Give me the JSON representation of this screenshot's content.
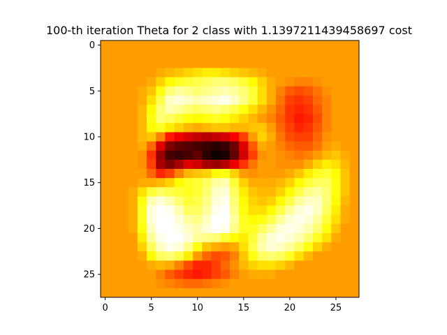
{
  "chart_data": {
    "type": "heatmap",
    "title": "100-th iteration Theta for 2 class with 1.1397211439458697 cost",
    "colormap": "hot",
    "shape": [
      28,
      28
    ],
    "xlim": [
      -0.5,
      27.5
    ],
    "ylim": [
      27.5,
      -0.5
    ],
    "xticks": [
      0,
      5,
      10,
      15,
      20,
      25
    ],
    "yticks": [
      0,
      5,
      10,
      15,
      20,
      25
    ],
    "baseline_value": 0.6,
    "color_scale_min": 0.0,
    "color_scale_max": 1.0,
    "grid": false,
    "values": [
      [
        0.6,
        0.6,
        0.6,
        0.6,
        0.6,
        0.6,
        0.6,
        0.6,
        0.6,
        0.6,
        0.6,
        0.6,
        0.6,
        0.6,
        0.6,
        0.6,
        0.6,
        0.6,
        0.6,
        0.6,
        0.6,
        0.6,
        0.6,
        0.6,
        0.6,
        0.6,
        0.6,
        0.6
      ],
      [
        0.6,
        0.6,
        0.6,
        0.6,
        0.6,
        0.6,
        0.6,
        0.6,
        0.6,
        0.6,
        0.6,
        0.6,
        0.6,
        0.6,
        0.6,
        0.6,
        0.6,
        0.6,
        0.6,
        0.6,
        0.6,
        0.6,
        0.6,
        0.6,
        0.6,
        0.6,
        0.6,
        0.6
      ],
      [
        0.6,
        0.6,
        0.6,
        0.6,
        0.6,
        0.6,
        0.6,
        0.6,
        0.6,
        0.6,
        0.6,
        0.6,
        0.6,
        0.6,
        0.6,
        0.6,
        0.6,
        0.6,
        0.6,
        0.6,
        0.6,
        0.6,
        0.6,
        0.6,
        0.6,
        0.6,
        0.6,
        0.6
      ],
      [
        0.6,
        0.6,
        0.6,
        0.6,
        0.6,
        0.6,
        0.62,
        0.64,
        0.66,
        0.68,
        0.7,
        0.72,
        0.72,
        0.7,
        0.68,
        0.66,
        0.64,
        0.62,
        0.6,
        0.6,
        0.6,
        0.6,
        0.6,
        0.6,
        0.6,
        0.6,
        0.6,
        0.6
      ],
      [
        0.6,
        0.6,
        0.6,
        0.6,
        0.6,
        0.62,
        0.68,
        0.74,
        0.78,
        0.8,
        0.82,
        0.84,
        0.86,
        0.86,
        0.84,
        0.8,
        0.74,
        0.68,
        0.62,
        0.6,
        0.58,
        0.56,
        0.56,
        0.58,
        0.6,
        0.6,
        0.6,
        0.6
      ],
      [
        0.6,
        0.6,
        0.6,
        0.6,
        0.62,
        0.66,
        0.76,
        0.86,
        0.9,
        0.88,
        0.86,
        0.88,
        0.9,
        0.92,
        0.9,
        0.86,
        0.8,
        0.7,
        0.62,
        0.56,
        0.5,
        0.48,
        0.5,
        0.54,
        0.58,
        0.6,
        0.6,
        0.6
      ],
      [
        0.6,
        0.6,
        0.6,
        0.6,
        0.62,
        0.7,
        0.82,
        0.94,
        0.96,
        0.94,
        0.92,
        0.94,
        0.96,
        0.98,
        0.94,
        0.88,
        0.8,
        0.7,
        0.62,
        0.54,
        0.46,
        0.44,
        0.46,
        0.52,
        0.56,
        0.6,
        0.6,
        0.6
      ],
      [
        0.6,
        0.6,
        0.6,
        0.6,
        0.64,
        0.74,
        0.86,
        0.92,
        0.9,
        0.86,
        0.84,
        0.86,
        0.88,
        0.86,
        0.82,
        0.76,
        0.7,
        0.64,
        0.58,
        0.52,
        0.44,
        0.42,
        0.44,
        0.5,
        0.56,
        0.6,
        0.6,
        0.6
      ],
      [
        0.6,
        0.6,
        0.6,
        0.6,
        0.64,
        0.76,
        0.86,
        0.84,
        0.8,
        0.76,
        0.74,
        0.76,
        0.78,
        0.76,
        0.72,
        0.68,
        0.64,
        0.6,
        0.56,
        0.5,
        0.44,
        0.4,
        0.42,
        0.48,
        0.56,
        0.6,
        0.6,
        0.6
      ],
      [
        0.6,
        0.6,
        0.6,
        0.6,
        0.64,
        0.74,
        0.78,
        0.72,
        0.68,
        0.64,
        0.62,
        0.64,
        0.66,
        0.66,
        0.64,
        0.64,
        0.66,
        0.66,
        0.6,
        0.52,
        0.46,
        0.42,
        0.44,
        0.5,
        0.56,
        0.6,
        0.6,
        0.6
      ],
      [
        0.6,
        0.6,
        0.6,
        0.6,
        0.64,
        0.66,
        0.56,
        0.4,
        0.34,
        0.3,
        0.28,
        0.26,
        0.28,
        0.3,
        0.36,
        0.46,
        0.6,
        0.68,
        0.62,
        0.54,
        0.48,
        0.46,
        0.46,
        0.52,
        0.58,
        0.6,
        0.6,
        0.6
      ],
      [
        0.6,
        0.6,
        0.6,
        0.6,
        0.62,
        0.52,
        0.32,
        0.18,
        0.14,
        0.12,
        0.1,
        0.08,
        0.06,
        0.08,
        0.16,
        0.32,
        0.5,
        0.62,
        0.6,
        0.56,
        0.52,
        0.5,
        0.5,
        0.54,
        0.6,
        0.62,
        0.6,
        0.6
      ],
      [
        0.6,
        0.6,
        0.6,
        0.6,
        0.58,
        0.44,
        0.22,
        0.1,
        0.08,
        0.1,
        0.14,
        0.06,
        0.02,
        0.04,
        0.14,
        0.3,
        0.46,
        0.58,
        0.6,
        0.58,
        0.56,
        0.54,
        0.56,
        0.6,
        0.64,
        0.66,
        0.62,
        0.6
      ],
      [
        0.6,
        0.6,
        0.6,
        0.6,
        0.58,
        0.46,
        0.24,
        0.18,
        0.24,
        0.32,
        0.3,
        0.24,
        0.22,
        0.26,
        0.34,
        0.44,
        0.54,
        0.6,
        0.6,
        0.58,
        0.58,
        0.58,
        0.62,
        0.68,
        0.72,
        0.7,
        0.64,
        0.6
      ],
      [
        0.6,
        0.6,
        0.6,
        0.6,
        0.6,
        0.52,
        0.42,
        0.46,
        0.56,
        0.64,
        0.66,
        0.68,
        0.74,
        0.76,
        0.68,
        0.6,
        0.58,
        0.6,
        0.6,
        0.6,
        0.62,
        0.66,
        0.72,
        0.78,
        0.8,
        0.74,
        0.66,
        0.6
      ],
      [
        0.6,
        0.6,
        0.6,
        0.6,
        0.62,
        0.62,
        0.64,
        0.68,
        0.74,
        0.78,
        0.8,
        0.84,
        0.9,
        0.92,
        0.8,
        0.68,
        0.62,
        0.62,
        0.62,
        0.64,
        0.68,
        0.74,
        0.8,
        0.84,
        0.84,
        0.76,
        0.66,
        0.6
      ],
      [
        0.6,
        0.6,
        0.6,
        0.62,
        0.7,
        0.8,
        0.84,
        0.82,
        0.8,
        0.78,
        0.8,
        0.86,
        0.94,
        0.96,
        0.84,
        0.72,
        0.66,
        0.64,
        0.64,
        0.68,
        0.74,
        0.82,
        0.88,
        0.9,
        0.86,
        0.76,
        0.66,
        0.6
      ],
      [
        0.6,
        0.6,
        0.6,
        0.62,
        0.76,
        0.92,
        0.96,
        0.92,
        0.86,
        0.8,
        0.82,
        0.88,
        0.96,
        0.98,
        0.86,
        0.74,
        0.68,
        0.66,
        0.68,
        0.74,
        0.82,
        0.9,
        0.94,
        0.94,
        0.86,
        0.74,
        0.64,
        0.6
      ],
      [
        0.6,
        0.6,
        0.6,
        0.62,
        0.78,
        0.96,
        1.0,
        0.98,
        0.92,
        0.84,
        0.84,
        0.9,
        0.98,
        1.0,
        0.88,
        0.76,
        0.7,
        0.7,
        0.74,
        0.82,
        0.9,
        0.96,
        0.98,
        0.94,
        0.84,
        0.72,
        0.62,
        0.6
      ],
      [
        0.6,
        0.6,
        0.6,
        0.62,
        0.78,
        0.96,
        1.0,
        1.0,
        0.96,
        0.9,
        0.88,
        0.94,
        1.0,
        1.0,
        0.9,
        0.78,
        0.74,
        0.76,
        0.82,
        0.9,
        0.96,
        0.98,
        0.96,
        0.9,
        0.8,
        0.7,
        0.62,
        0.6
      ],
      [
        0.6,
        0.6,
        0.6,
        0.62,
        0.76,
        0.94,
        1.0,
        1.0,
        0.98,
        0.94,
        0.92,
        0.96,
        1.0,
        0.98,
        0.88,
        0.78,
        0.78,
        0.84,
        0.9,
        0.96,
        0.98,
        0.96,
        0.92,
        0.86,
        0.76,
        0.66,
        0.6,
        0.6
      ],
      [
        0.6,
        0.6,
        0.6,
        0.6,
        0.72,
        0.9,
        0.98,
        1.0,
        1.0,
        0.96,
        0.9,
        0.88,
        0.86,
        0.8,
        0.74,
        0.72,
        0.8,
        0.9,
        0.96,
        0.98,
        0.96,
        0.92,
        0.86,
        0.78,
        0.7,
        0.62,
        0.6,
        0.6
      ],
      [
        0.6,
        0.6,
        0.6,
        0.6,
        0.68,
        0.84,
        0.94,
        0.98,
        0.96,
        0.88,
        0.76,
        0.66,
        0.62,
        0.6,
        0.62,
        0.7,
        0.82,
        0.92,
        0.96,
        0.94,
        0.9,
        0.84,
        0.76,
        0.68,
        0.62,
        0.6,
        0.6,
        0.6
      ],
      [
        0.6,
        0.6,
        0.6,
        0.6,
        0.62,
        0.74,
        0.84,
        0.86,
        0.82,
        0.72,
        0.6,
        0.52,
        0.48,
        0.5,
        0.56,
        0.66,
        0.76,
        0.84,
        0.86,
        0.84,
        0.78,
        0.7,
        0.64,
        0.6,
        0.6,
        0.6,
        0.6,
        0.6
      ],
      [
        0.6,
        0.6,
        0.6,
        0.6,
        0.6,
        0.62,
        0.64,
        0.62,
        0.56,
        0.48,
        0.42,
        0.42,
        0.46,
        0.52,
        0.58,
        0.64,
        0.68,
        0.7,
        0.7,
        0.68,
        0.64,
        0.6,
        0.6,
        0.6,
        0.6,
        0.6,
        0.6,
        0.6
      ],
      [
        0.6,
        0.6,
        0.6,
        0.6,
        0.6,
        0.6,
        0.56,
        0.5,
        0.46,
        0.42,
        0.4,
        0.42,
        0.46,
        0.5,
        0.56,
        0.6,
        0.62,
        0.62,
        0.62,
        0.6,
        0.6,
        0.6,
        0.6,
        0.6,
        0.6,
        0.6,
        0.6,
        0.6
      ],
      [
        0.6,
        0.6,
        0.6,
        0.6,
        0.6,
        0.6,
        0.58,
        0.56,
        0.54,
        0.52,
        0.52,
        0.54,
        0.56,
        0.58,
        0.6,
        0.6,
        0.6,
        0.6,
        0.6,
        0.6,
        0.6,
        0.6,
        0.6,
        0.6,
        0.6,
        0.6,
        0.6,
        0.6
      ],
      [
        0.6,
        0.6,
        0.6,
        0.6,
        0.6,
        0.6,
        0.6,
        0.6,
        0.6,
        0.6,
        0.6,
        0.6,
        0.6,
        0.6,
        0.6,
        0.6,
        0.6,
        0.6,
        0.6,
        0.6,
        0.6,
        0.6,
        0.6,
        0.6,
        0.6,
        0.6,
        0.6,
        0.6
      ]
    ]
  }
}
